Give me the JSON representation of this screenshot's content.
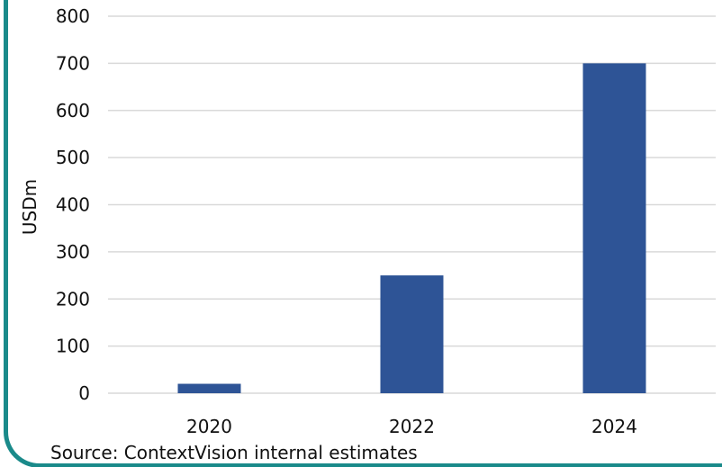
{
  "chart_data": {
    "type": "bar",
    "categories": [
      "2020",
      "2022",
      "2024"
    ],
    "values": [
      20,
      250,
      700
    ],
    "ylabel": "USDm",
    "xlabel": "",
    "ylim": [
      0,
      800
    ],
    "yticks": [
      0,
      100,
      200,
      300,
      400,
      500,
      600,
      700,
      800
    ],
    "grid": true,
    "legend": "none",
    "bar_color": "#2e5496",
    "grid_color": "#d9d9d9"
  },
  "source_note": "Source: ContextVision internal estimates",
  "colors": {
    "frame_accent": "#1a8a8a"
  }
}
